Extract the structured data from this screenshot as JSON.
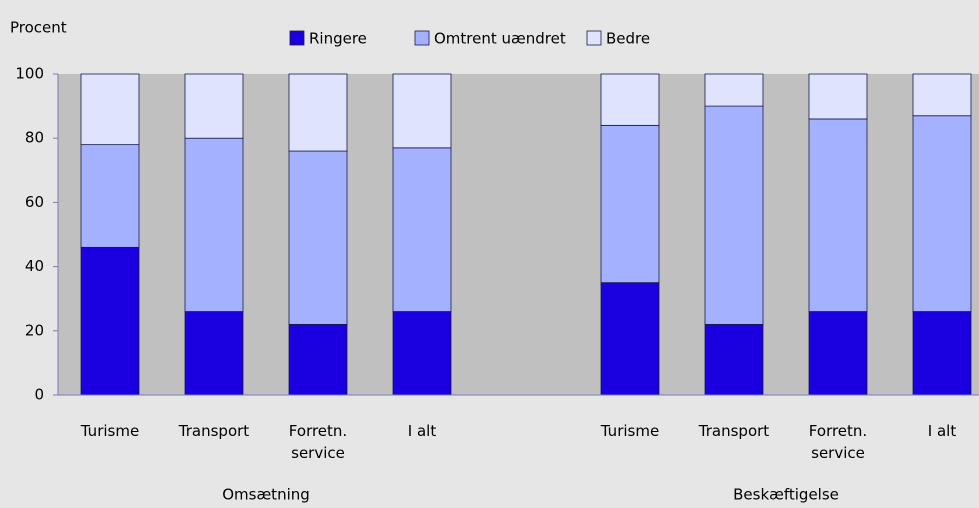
{
  "chart_data": {
    "type": "stacked_bar",
    "y_label": "Procent",
    "categories": [
      "Turisme",
      "Transport",
      "Forretn. service",
      "I alt",
      null,
      "Turisme",
      "Transport",
      "Forretn. service",
      "I alt"
    ],
    "series": [
      {
        "name": "Ringere",
        "color": "#1a00e0",
        "values": [
          46,
          26,
          22,
          26,
          null,
          35,
          22,
          26,
          26
        ]
      },
      {
        "name": "Omtrent uændret",
        "color": "#a3b1ff",
        "values": [
          32,
          54,
          54,
          51,
          null,
          49,
          68,
          60,
          61
        ]
      },
      {
        "name": "Bedre",
        "color": "#dfe4fc",
        "values": [
          22,
          20,
          24,
          23,
          null,
          16,
          10,
          14,
          13
        ]
      }
    ],
    "annotations": [
      {
        "text": "Omsætning",
        "categories": [
          0,
          3
        ]
      },
      {
        "text": "Beskæftigelse",
        "categories": [
          5,
          8
        ]
      }
    ],
    "ylim": [
      0,
      100
    ],
    "yticks": [
      0,
      20,
      40,
      60,
      80,
      100
    ],
    "grid": false
  }
}
